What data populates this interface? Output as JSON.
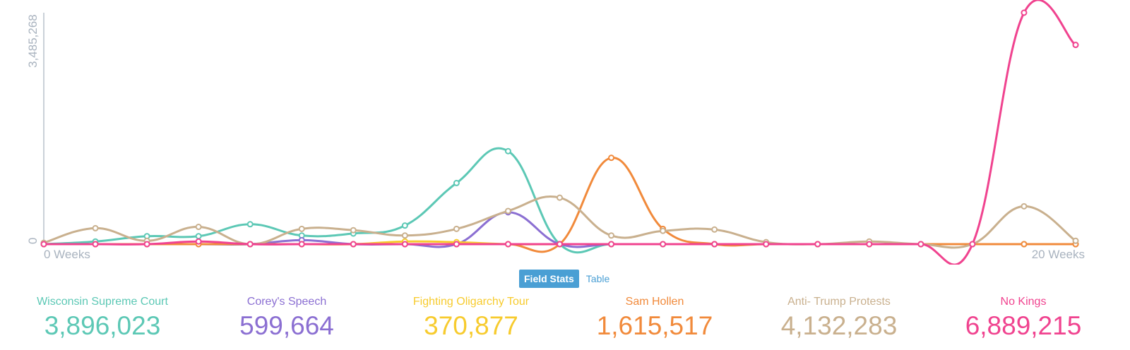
{
  "chart_data": {
    "type": "line",
    "y_axis_label_top": "3,485,268",
    "y_axis_label_bottom": "0",
    "x_axis_label_left": "0 Weeks",
    "x_axis_label_right": "20 Weeks",
    "ylim": [
      0,
      3485268
    ],
    "x": [
      0,
      1,
      2,
      3,
      4,
      5,
      6,
      7,
      8,
      9,
      10,
      11,
      12,
      13,
      14,
      15,
      16,
      17,
      18,
      19,
      20
    ],
    "series": [
      {
        "name": "Wisconsin Supreme Court",
        "color": "#5cc8b5",
        "values": [
          0,
          40000,
          120000,
          120000,
          300000,
          130000,
          160000,
          280000,
          920000,
          1400000,
          0,
          0,
          0,
          0,
          0,
          0,
          0,
          0,
          0,
          0,
          0
        ]
      },
      {
        "name": "Corey's Speech",
        "color": "#8b6fd2",
        "values": [
          0,
          0,
          0,
          0,
          0,
          60000,
          0,
          0,
          0,
          480000,
          0,
          0,
          0,
          0,
          0,
          0,
          0,
          0,
          0,
          0,
          0
        ]
      },
      {
        "name": "Fighting Oligarchy Tour",
        "color": "#f7cb2e",
        "values": [
          0,
          0,
          0,
          0,
          0,
          0,
          0,
          40000,
          30000,
          0,
          0,
          0,
          0,
          0,
          0,
          0,
          0,
          0,
          0,
          0,
          0
        ]
      },
      {
        "name": "Sam Hollen",
        "color": "#f18a3b",
        "values": [
          0,
          0,
          0,
          0,
          0,
          0,
          0,
          0,
          0,
          0,
          0,
          1300000,
          230000,
          0,
          0,
          0,
          0,
          0,
          0,
          0,
          0
        ]
      },
      {
        "name": "Anti- Trump Protests",
        "color": "#c9b08e",
        "values": [
          20000,
          240000,
          50000,
          260000,
          0,
          230000,
          210000,
          130000,
          230000,
          500000,
          700000,
          130000,
          200000,
          220000,
          30000,
          0,
          40000,
          0,
          0,
          570000,
          50000
        ]
      },
      {
        "name": "No Kings",
        "color": "#f0438f",
        "values": [
          0,
          0,
          0,
          40000,
          0,
          0,
          0,
          0,
          0,
          0,
          0,
          0,
          0,
          0,
          0,
          0,
          0,
          0,
          0,
          3485268,
          3000000
        ]
      }
    ]
  },
  "controls": {
    "field_stats_label": "Field Stats",
    "table_label": "Table"
  },
  "legend": [
    {
      "name": "Wisconsin Supreme Court",
      "value": "3,896,023",
      "color": "#5cc8b5"
    },
    {
      "name": "Corey's Speech",
      "value": "599,664",
      "color": "#8b6fd2"
    },
    {
      "name": "Fighting Oligarchy Tour",
      "value": "370,877",
      "color": "#f7cb2e"
    },
    {
      "name": "Sam Hollen",
      "value": "1,615,517",
      "color": "#f18a3b"
    },
    {
      "name": "Anti- Trump Protests",
      "value": "4,132,283",
      "color": "#c9b08e"
    },
    {
      "name": "No Kings",
      "value": "6,889,215",
      "color": "#f0438f"
    }
  ]
}
